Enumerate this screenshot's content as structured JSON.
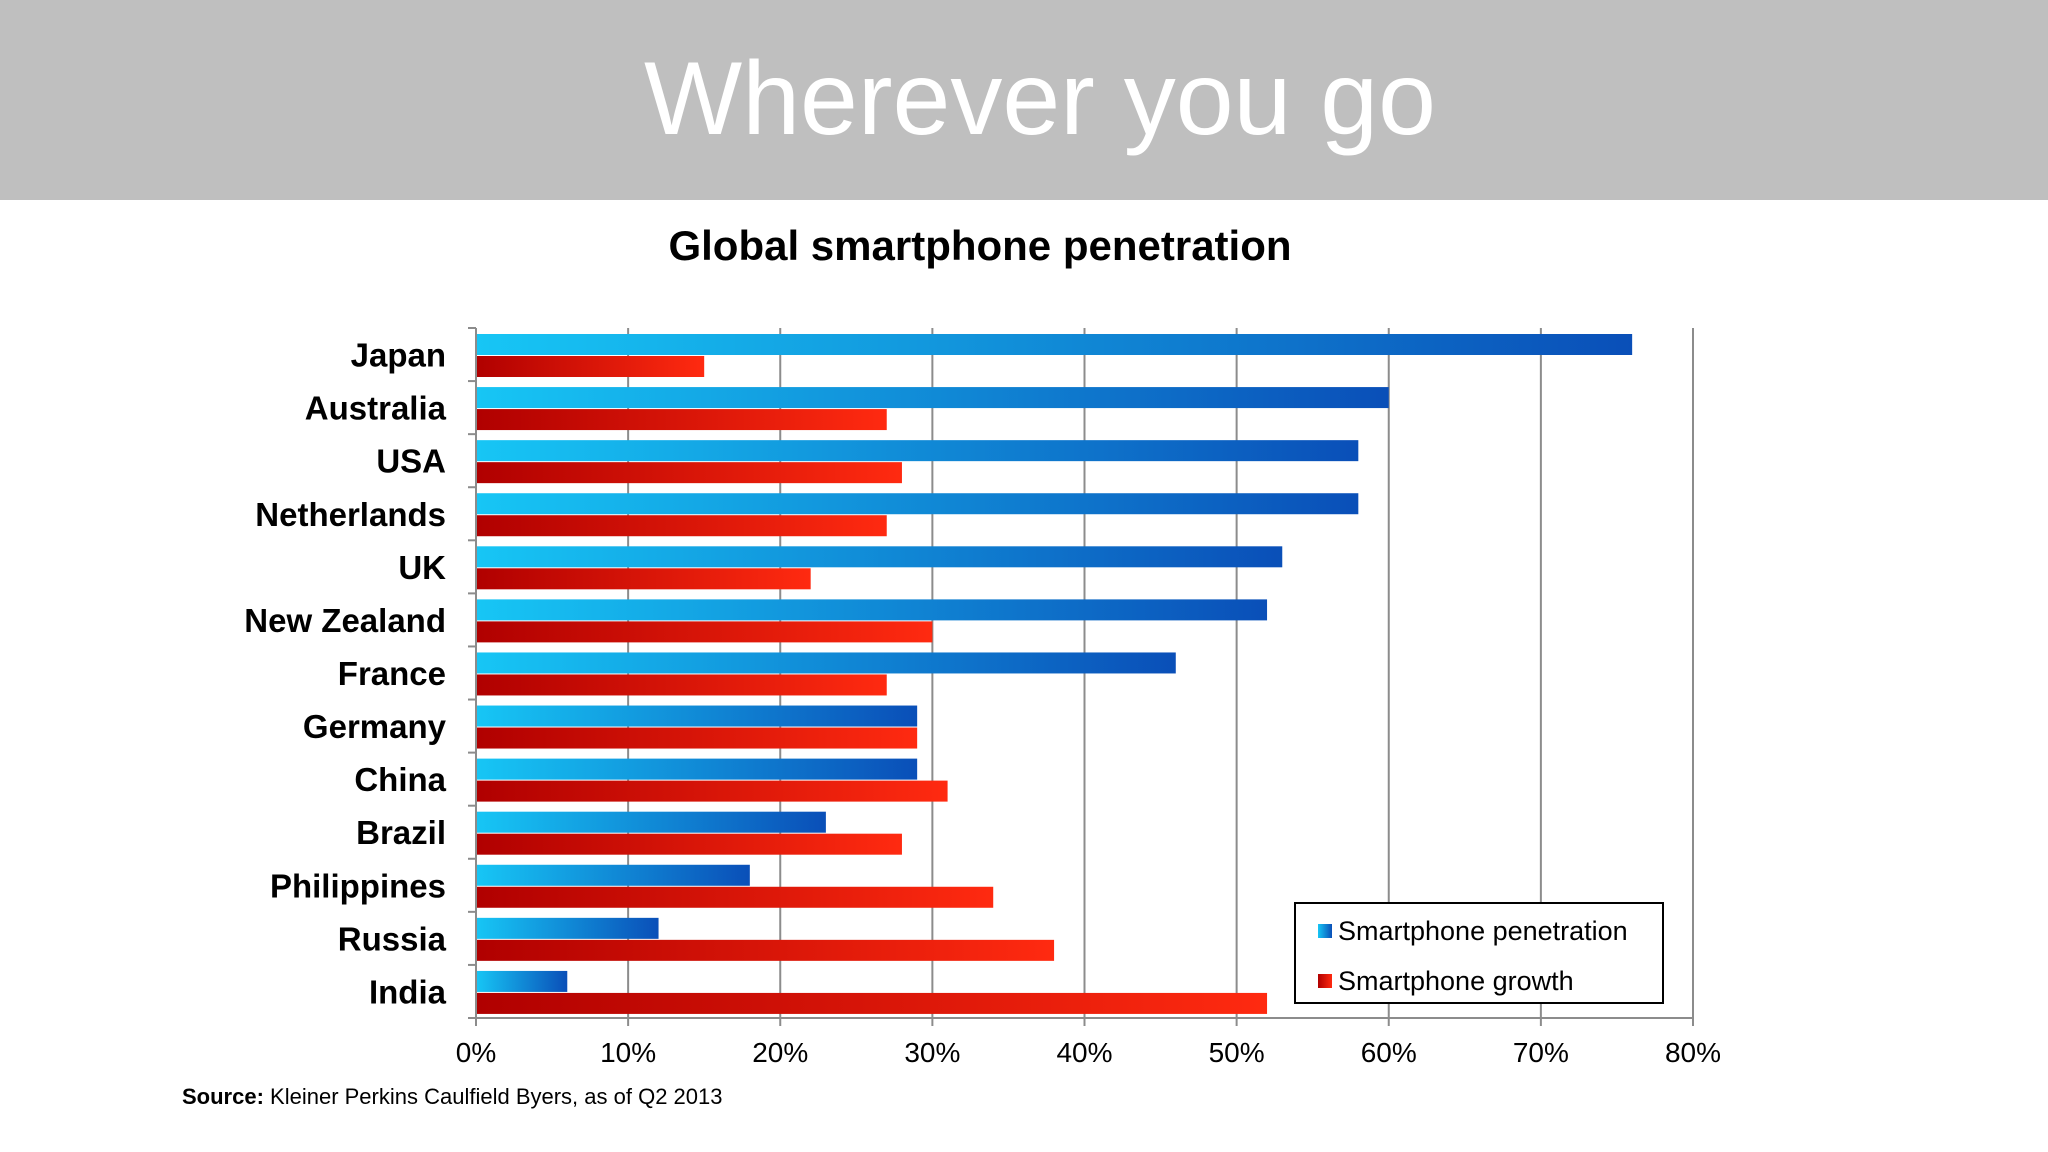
{
  "header": {
    "title": "Wherever you go"
  },
  "source": {
    "label": "Source:",
    "text": " Kleiner Perkins Caulfield Byers, as of Q2 2013"
  },
  "colors": {
    "header_bg": "#bfbfbf",
    "penetration": "#1a7fe0",
    "growth": "#e01010"
  },
  "chart_data": {
    "type": "bar",
    "orientation": "horizontal",
    "title": "Global smartphone penetration",
    "categories": [
      "Japan",
      "Australia",
      "USA",
      "Netherlands",
      "UK",
      "New Zealand",
      "France",
      "Germany",
      "China",
      "Brazil",
      "Philippines",
      "Russia",
      "India"
    ],
    "series": [
      {
        "name": "Smartphone penetration",
        "values": [
          76,
          60,
          58,
          58,
          53,
          52,
          46,
          29,
          29,
          23,
          18,
          12,
          6
        ]
      },
      {
        "name": "Smartphone growth",
        "values": [
          15,
          27,
          28,
          27,
          22,
          30,
          27,
          29,
          31,
          28,
          34,
          38,
          52
        ]
      }
    ],
    "xlim": [
      0,
      80
    ],
    "xticks": [
      "0%",
      "10%",
      "20%",
      "30%",
      "40%",
      "50%",
      "60%",
      "70%",
      "80%"
    ],
    "xlabel": "",
    "ylabel": "",
    "grid": "vertical",
    "legend_position": "bottom-right"
  }
}
